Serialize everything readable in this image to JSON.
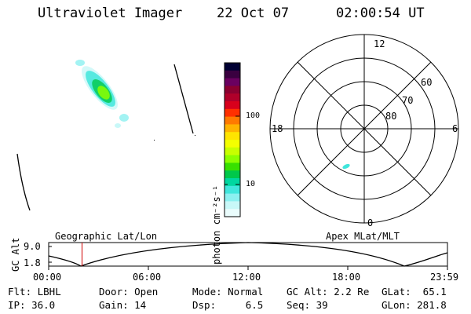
{
  "header": {
    "instrument": "Ultraviolet Imager",
    "date": "22 Oct 07",
    "time": "02:00:54 UT"
  },
  "colorbar": {
    "unit_label": "photon cm⁻²s⁻¹",
    "ticks": [
      "100",
      "10"
    ],
    "colors": [
      "#000033",
      "#3a0040",
      "#6a0060",
      "#8b0030",
      "#b0002a",
      "#d8001c",
      "#ff3000",
      "#ff7a00",
      "#ffb400",
      "#ffe400",
      "#f4ff00",
      "#c8ff00",
      "#8cff00",
      "#38e000",
      "#00c84a",
      "#00d7a0",
      "#40e6dc",
      "#8cf0f0",
      "#c8f8f8",
      "#eafcfc"
    ]
  },
  "polar_plot": {
    "mlt_labels": {
      "top": "12",
      "left": "18",
      "right": "6",
      "bottom": "0"
    },
    "lat_labels": [
      "60",
      "70",
      "80"
    ]
  },
  "altitude_panel": {
    "ylabel": "GC Alt",
    "ymax": "9.0",
    "ymin": "1.8",
    "left_title": "Geographic Lat/Lon",
    "right_title": "Apex MLat/MLT",
    "time_ticks": [
      "00:00",
      "06:00",
      "12:00",
      "18:00",
      "23:59"
    ],
    "current_time_fraction": 0.0837
  },
  "info": {
    "row1": {
      "flt": "Flt: LBHL",
      "door": "Door: Open",
      "mode": "Mode: Normal",
      "gcalt": "GC Alt: 2.2 Re",
      "glat": "GLat:  65.1"
    },
    "row2": {
      "ip": "IP: 36.0",
      "gain": "Gain: 14",
      "dsp": "Dsp:     6.5",
      "seq": "Seq: 39",
      "glon": "GLon: 281.8"
    }
  }
}
